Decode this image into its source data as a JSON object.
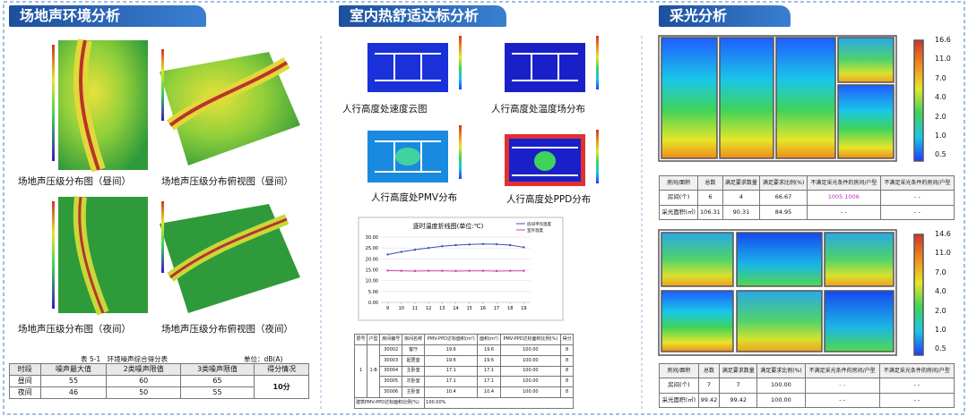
{
  "sections": [
    {
      "title": "场地声环境分析",
      "captions": [
        "场地声压级分布图（昼间）",
        "场地声压级分布俯视图（昼间）",
        "场地声压级分布图（夜间）",
        "场地声压级分布俯视图（夜间）"
      ],
      "table": {
        "title": "表 5-1　环境噪声综合得分表",
        "unit": "单位：dB(A)",
        "headers": [
          "时段",
          "噪声最大值",
          "2类噪声限值",
          "3类噪声限值",
          "得分情况"
        ],
        "rows": [
          [
            "昼间",
            "55",
            "60",
            "65"
          ],
          [
            "夜间",
            "46",
            "50",
            "55"
          ]
        ],
        "score": "10分"
      }
    },
    {
      "title": "室内热舒适达标分析",
      "captions": [
        "人行高度处速度云图",
        "人行高度处温度场分布",
        "人行高度处PMV分布",
        "人行高度处PPD分布"
      ],
      "line_chart": {
        "title": "逐时温度折线图(单位:℃)",
        "x": [
          9,
          10,
          11,
          12,
          13,
          14,
          15,
          16,
          17,
          18,
          19
        ],
        "xlim": [
          8.5,
          19.5
        ],
        "xticks": [
          9,
          10,
          11,
          12,
          13,
          14,
          15,
          16,
          17,
          18,
          19
        ],
        "ylim": [
          0,
          30
        ],
        "yticks": [
          {
            "value": 0,
            "label": "0.00"
          },
          {
            "value": 5,
            "label": "5.00"
          },
          {
            "value": 10,
            "label": "10.00"
          },
          {
            "value": 15,
            "label": "15.00"
          },
          {
            "value": 20,
            "label": "20.00"
          },
          {
            "value": 25,
            "label": "25.00"
          },
          {
            "value": 30,
            "label": "30.00"
          }
        ],
        "series": [
          {
            "name": "房间平均温度",
            "color": "#3f4fb0",
            "values": [
              22.0,
              23.2,
              24.2,
              25.0,
              25.8,
              26.3,
              26.6,
              26.8,
              26.7,
              26.3,
              25.3
            ]
          },
          {
            "name": "室外温度",
            "color": "#d0459a",
            "values": [
              14.6,
              14.5,
              14.4,
              14.5,
              14.5,
              14.4,
              14.5,
              14.5,
              14.4,
              14.5,
              14.5
            ]
          }
        ]
      },
      "table": {
        "headers": [
          "层号",
          "户型",
          "房间编号",
          "房间名称",
          "PMV-PPD达标面积(m²)",
          "面积(m²)",
          "PMV-PPD达标面积比例(%)",
          "得分"
        ],
        "floor": "1",
        "unit": "1-B",
        "rows": [
          [
            "30002",
            "客厅",
            "19.6",
            "19.6",
            "100.00",
            "8"
          ],
          [
            "30003",
            "起居室",
            "19.6",
            "19.6",
            "100.00",
            "8"
          ],
          [
            "30004",
            "主卧室",
            "17.1",
            "17.1",
            "100.00",
            "8"
          ],
          [
            "30005",
            "次卧室",
            "17.1",
            "17.1",
            "100.00",
            "8"
          ],
          [
            "30006",
            "主卧室",
            "10.4",
            "10.4",
            "100.00",
            "8"
          ]
        ],
        "footer": [
          "建筑PMV-PPD达标面积比例(%)",
          "100.00%"
        ]
      }
    },
    {
      "title": "采光分析",
      "maps": [
        {
          "scale": [
            "16.6",
            "11.0",
            "7.0",
            "4.0",
            "2.0",
            "1.0",
            "0.5"
          ],
          "table": {
            "headers": [
              "房间/面积",
              "总数",
              "满足要求数量",
              "满足要求比例(%)",
              "不满足采光条件的房间/户型",
              "不满足采光条件的房间/户型"
            ],
            "rows": [
              [
                "房间(个)",
                "6",
                "4",
                "66.67",
                "1005 1006",
                "- -"
              ],
              [
                "采光面积(㎡)",
                "106.31",
                "90.31",
                "84.95",
                "- -",
                "- -"
              ]
            ]
          }
        },
        {
          "scale": [
            "14.6",
            "11.0",
            "7.0",
            "4.0",
            "2.0",
            "1.0",
            "0.5"
          ],
          "table": {
            "headers": [
              "房间/面积",
              "总数",
              "满足要求数量",
              "满足要求比例(%)",
              "不满足采光条件的房间/户型",
              "不满足采光条件的房间/户型"
            ],
            "rows": [
              [
                "房间(个)",
                "7",
                "7",
                "100.00",
                "- -",
                "- -"
              ],
              [
                "采光面积(㎡)",
                "99.42",
                "99.42",
                "100.00",
                "- -",
                "- -"
              ]
            ]
          }
        }
      ]
    }
  ]
}
